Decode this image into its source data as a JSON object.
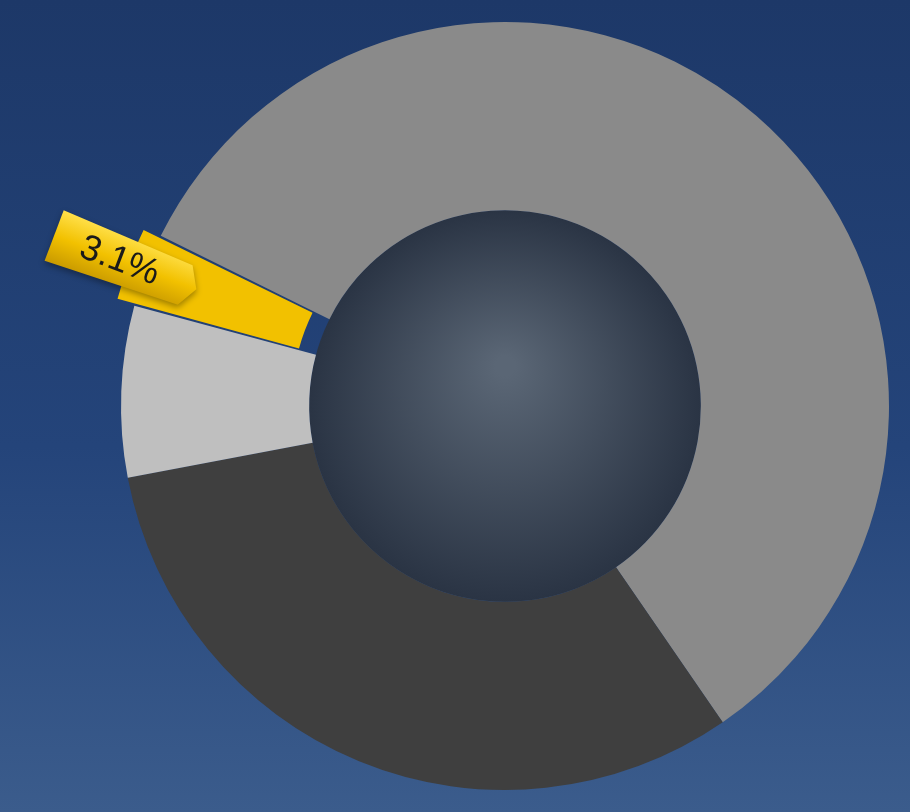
{
  "chart_data": {
    "type": "doughnut",
    "categories": [
      null,
      null,
      null,
      null
    ],
    "values": [
      58.1,
      31.6,
      7.2,
      3.1
    ],
    "value_labels": [
      null,
      null,
      null,
      "3.1%"
    ],
    "colors": [
      "#8a8a8a",
      "#3f3f3f",
      "#bfbfbf",
      "#f2c100"
    ],
    "data_labels": true
  }
}
